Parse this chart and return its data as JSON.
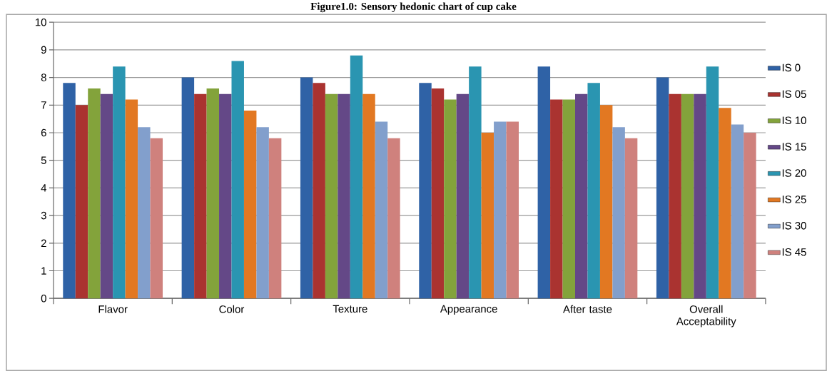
{
  "chart_data": {
    "type": "bar",
    "title": "Figure1.0: Sensory hedonic chart of cup cake",
    "categories": [
      "Flavor",
      "Color",
      "Texture",
      "Appearance",
      "After taste",
      "Overall Acceptability"
    ],
    "series": [
      {
        "name": "IS 0",
        "color": "#2f62a6",
        "values": [
          7.8,
          8.0,
          8.0,
          7.8,
          8.4,
          8.0
        ]
      },
      {
        "name": "IS 05",
        "color": "#aa3330",
        "values": [
          7.0,
          7.4,
          7.8,
          7.6,
          7.2,
          7.4
        ]
      },
      {
        "name": "IS 10",
        "color": "#83a33b",
        "values": [
          7.6,
          7.6,
          7.4,
          7.2,
          7.2,
          7.4
        ]
      },
      {
        "name": "IS 15",
        "color": "#644887",
        "values": [
          7.4,
          7.4,
          7.4,
          7.4,
          7.4,
          7.4
        ]
      },
      {
        "name": "IS 20",
        "color": "#2a95b1",
        "values": [
          8.4,
          8.6,
          8.8,
          8.4,
          7.8,
          8.4
        ]
      },
      {
        "name": "IS 25",
        "color": "#e27822",
        "values": [
          7.2,
          6.8,
          7.4,
          6.0,
          7.0,
          6.9
        ]
      },
      {
        "name": "IS 30",
        "color": "#829fcc",
        "values": [
          6.2,
          6.2,
          6.4,
          6.4,
          6.2,
          6.3
        ]
      },
      {
        "name": "IS 45",
        "color": "#cf817d",
        "values": [
          5.8,
          5.8,
          5.8,
          6.4,
          5.8,
          6.0
        ]
      }
    ],
    "ylim": [
      0,
      10
    ],
    "yticks": [
      0,
      1,
      2,
      3,
      4,
      5,
      6,
      7,
      8,
      9,
      10
    ],
    "grid": "y",
    "legend": "right"
  }
}
